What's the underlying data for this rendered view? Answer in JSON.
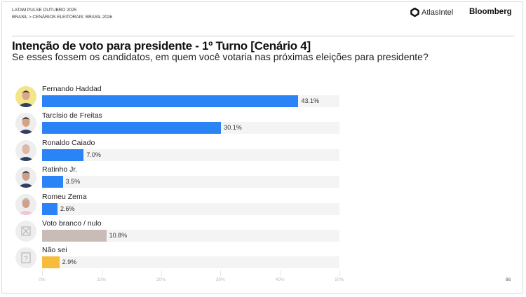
{
  "header": {
    "line1": "LATAM PULSE OUTUBRO 2025",
    "line2": "BRASIL > CENÁRIOS ELEITORAIS: BRASIL 2026",
    "logo_atlas": "AtlasIntel",
    "logo_bloomberg": "Bloomberg"
  },
  "chart_data": {
    "type": "bar",
    "orientation": "horizontal",
    "title": "Intenção de voto para presidente - 1º Turno [Cenário 4]",
    "subtitle": "Se esses fossem os candidatos, em quem você votaria nas próximas eleições para presidente?",
    "categories": [
      "Fernando Haddad",
      "Tarcísio de Freitas",
      "Ronaldo Caiado",
      "Ratinho Jr.",
      "Romeu Zema",
      "Voto branco / nulo",
      "Não sei"
    ],
    "values": [
      43.1,
      30.1,
      7.0,
      3.5,
      2.6,
      10.8,
      2.9
    ],
    "value_labels": [
      "43.1%",
      "30.1%",
      "7.0%",
      "3.5%",
      "2.6%",
      "10.8%",
      "2.9%"
    ],
    "colors": [
      "#2b84f5",
      "#2b84f5",
      "#2b84f5",
      "#2b84f5",
      "#2b84f5",
      "#c9bcb6",
      "#f7bc3c"
    ],
    "icons": [
      "candidate-photo",
      "candidate-photo",
      "candidate-photo",
      "candidate-photo",
      "candidate-photo",
      "x-box-icon",
      "question-box-icon"
    ],
    "xlim": [
      0,
      50
    ],
    "xticks": [
      "0%",
      "10%",
      "20%",
      "30%",
      "40%",
      "50%"
    ],
    "grid": false
  },
  "page_number": "86"
}
